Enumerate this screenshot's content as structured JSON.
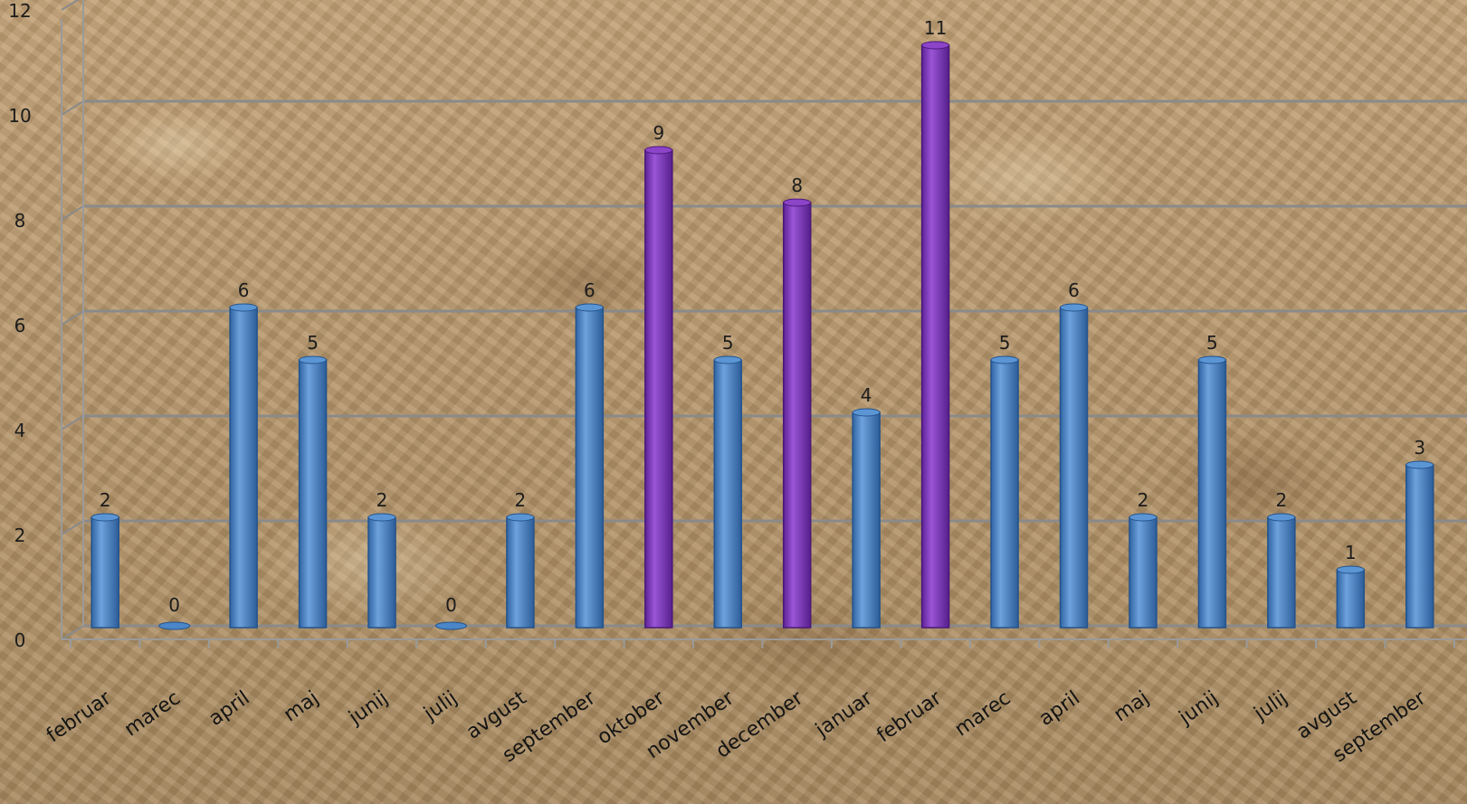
{
  "chart_data": {
    "type": "bar",
    "categories": [
      "februar",
      "marec",
      "april",
      "maj",
      "junij",
      "julij",
      "avgust",
      "september",
      "oktober",
      "november",
      "december",
      "januar",
      "februar",
      "marec",
      "april",
      "maj",
      "junij",
      "julij",
      "avgust",
      "september"
    ],
    "values": [
      2,
      0,
      6,
      5,
      2,
      0,
      2,
      6,
      9,
      5,
      8,
      4,
      11,
      5,
      6,
      2,
      5,
      2,
      1,
      3
    ],
    "highlight": [
      false,
      false,
      false,
      false,
      false,
      false,
      false,
      false,
      true,
      false,
      true,
      false,
      true,
      false,
      false,
      false,
      false,
      false,
      false,
      false
    ],
    "yticks": [
      0,
      2,
      4,
      6,
      8,
      10,
      12
    ],
    "ylim": [
      0,
      12
    ],
    "grid": true,
    "colors": {
      "bar": "#4a86c8",
      "highlight": "#7a34b8",
      "gridline": "#8a8a8a"
    },
    "title": "",
    "xlabel": "",
    "ylabel": ""
  }
}
